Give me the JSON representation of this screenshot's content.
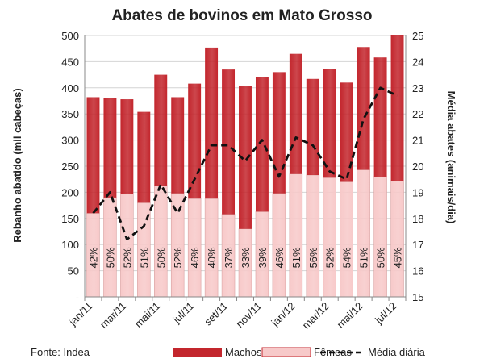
{
  "chart_data": {
    "type": "bar",
    "title": "Abates de bovinos em Mato Grosso",
    "ylabel": "Rebanho abatido (mil cabeças)",
    "y2label": "Média abates (animais/dia)",
    "ylim": [
      0,
      500
    ],
    "y2lim": [
      15,
      25
    ],
    "yticks": [
      "-",
      "50",
      "100",
      "150",
      "200",
      "250",
      "300",
      "350",
      "400",
      "450",
      "500"
    ],
    "y2ticks": [
      "15",
      "16",
      "17",
      "18",
      "19",
      "20",
      "21",
      "22",
      "23",
      "24",
      "25"
    ],
    "xticks": [
      {
        "index": 0,
        "label": "jan/11"
      },
      {
        "index": 2,
        "label": "mar/11"
      },
      {
        "index": 4,
        "label": "mai/11"
      },
      {
        "index": 6,
        "label": "jul/11"
      },
      {
        "index": 8,
        "label": "set/11"
      },
      {
        "index": 10,
        "label": "nov/11"
      },
      {
        "index": 12,
        "label": "jan/12"
      },
      {
        "index": 14,
        "label": "mar/12"
      },
      {
        "index": 16,
        "label": "mai/12"
      },
      {
        "index": 18,
        "label": "jul/12"
      }
    ],
    "stacked": true,
    "grid": true,
    "legend_position": "bottom",
    "series": [
      {
        "name": "Fêmeas",
        "color": "#f7c9c9",
        "values": [
          160,
          190,
          197,
          180,
          213,
          198,
          188,
          188,
          158,
          130,
          163,
          198,
          235,
          233,
          228,
          220,
          243,
          230,
          222
        ]
      },
      {
        "name": "Machos",
        "color": "#c3262d",
        "values": [
          222,
          190,
          181,
          174,
          212,
          184,
          220,
          289,
          277,
          273,
          257,
          232,
          230,
          184,
          208,
          190,
          235,
          228,
          278
        ]
      }
    ],
    "bar_labels": [
      "42%",
      "50%",
      "52%",
      "51%",
      "50%",
      "52%",
      "46%",
      "40%",
      "37%",
      "33%",
      "39%",
      "46%",
      "51%",
      "56%",
      "52%",
      "54%",
      "51%",
      "50%",
      "45%"
    ],
    "line": {
      "name": "Média diária",
      "axis": "right",
      "color": "#111111",
      "values": [
        18.2,
        19.0,
        17.2,
        17.7,
        19.3,
        18.2,
        19.5,
        20.8,
        20.8,
        20.2,
        21.0,
        19.6,
        21.1,
        20.8,
        19.8,
        19.5,
        21.8,
        23.0,
        22.7
      ]
    },
    "source": "Fonte: Indea"
  }
}
